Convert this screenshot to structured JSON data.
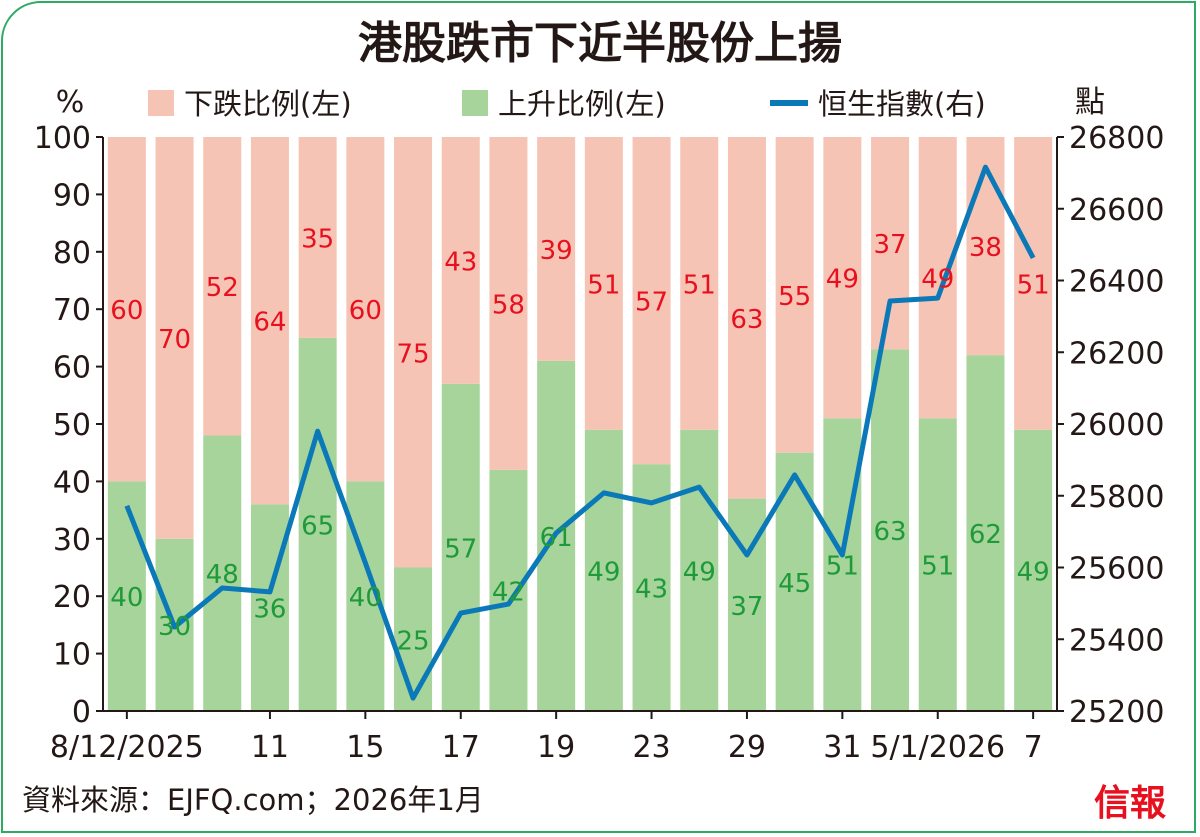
{
  "chart_data": {
    "type": "bar+line",
    "title": "港股跌市下近半股份上揚",
    "ylabel_left": "%",
    "ylabel_right": "點",
    "ylim_left": [
      0,
      100
    ],
    "ylim_right": [
      25200,
      26800
    ],
    "yticks_left": [
      "0",
      "10",
      "20",
      "30",
      "40",
      "50",
      "60",
      "70",
      "80",
      "90",
      "100"
    ],
    "yticks_right": [
      "25200",
      "25400",
      "25600",
      "25800",
      "26000",
      "26200",
      "26400",
      "26600",
      "26800"
    ],
    "x_tick_labels": [
      {
        "index": 0,
        "label": "8/12/2025"
      },
      {
        "index": 3,
        "label": "11"
      },
      {
        "index": 5,
        "label": "15"
      },
      {
        "index": 7,
        "label": "17"
      },
      {
        "index": 9,
        "label": "19"
      },
      {
        "index": 11,
        "label": "23"
      },
      {
        "index": 13,
        "label": "29"
      },
      {
        "index": 15,
        "label": "31"
      },
      {
        "index": 17,
        "label": "5/1/2026"
      },
      {
        "index": 19,
        "label": "7"
      }
    ],
    "legend": [
      "下跌比例(左)",
      "上升比例(左)",
      "恒生指數(右)"
    ],
    "series": [
      {
        "name": "下跌比例(左)",
        "type": "stacked-bar",
        "color": "#f6c4b4",
        "label_color": "#e8101f",
        "values": [
          60,
          70,
          52,
          64,
          35,
          60,
          75,
          43,
          58,
          39,
          51,
          57,
          51,
          63,
          55,
          49,
          37,
          49,
          38,
          51
        ]
      },
      {
        "name": "上升比例(左)",
        "type": "stacked-bar",
        "color": "#a6d49a",
        "label_color": "#1f9a3a",
        "values": [
          40,
          30,
          48,
          36,
          65,
          40,
          25,
          57,
          42,
          61,
          49,
          43,
          49,
          37,
          45,
          51,
          63,
          51,
          62,
          49
        ]
      },
      {
        "name": "恒生指數(右)",
        "type": "line",
        "color": "#0b78b8",
        "values": [
          25772,
          25434,
          25543,
          25532,
          25980,
          25613,
          25236,
          25473,
          25498,
          25696,
          25808,
          25780,
          25824,
          25635,
          25858,
          25635,
          26343,
          26351,
          26716,
          26463
        ]
      }
    ]
  },
  "source": "資料來源：EJFQ.com；2026年1月",
  "logo": "信報"
}
